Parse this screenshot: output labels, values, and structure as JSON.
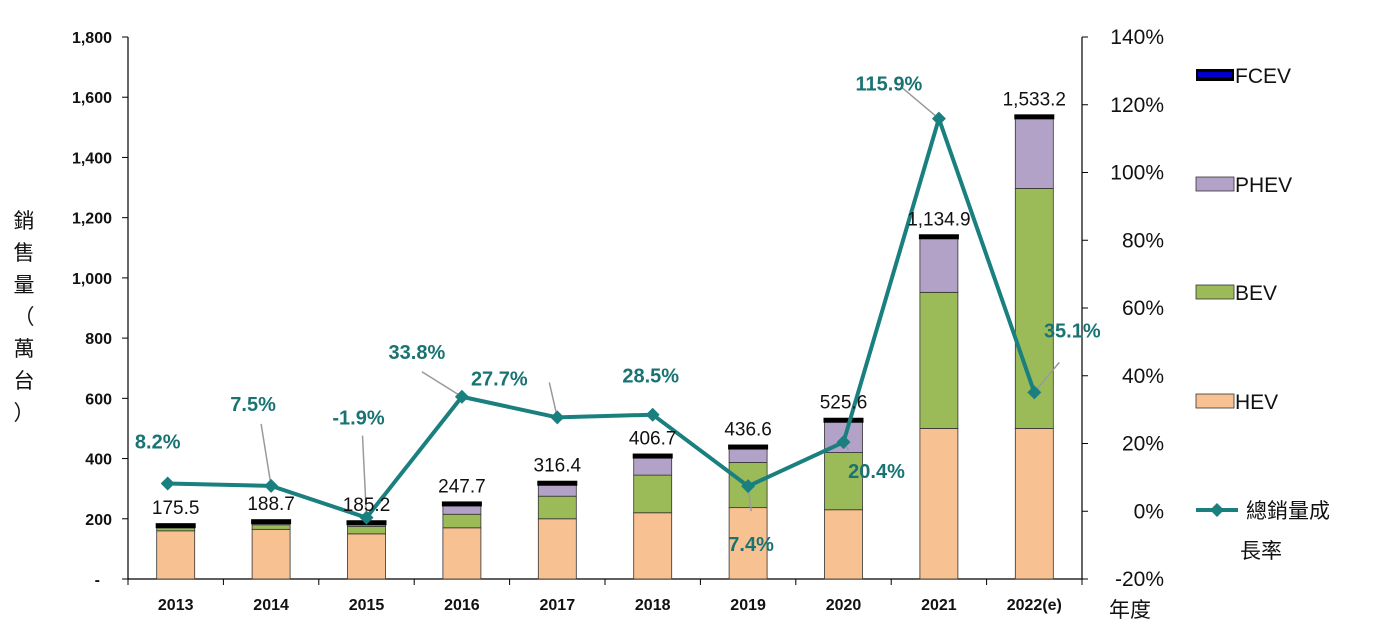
{
  "chart_data": {
    "type": "bar",
    "stacked": true,
    "categories": [
      "2013",
      "2014",
      "2015",
      "2016",
      "2017",
      "2018",
      "2019",
      "2020",
      "2021",
      "2022(e)"
    ],
    "series": [
      {
        "name": "HEV",
        "color": "#f8c191",
        "values": [
          160,
          165,
          150,
          170,
          200,
          220,
          237,
          230,
          500,
          500
        ]
      },
      {
        "name": "BEV",
        "color": "#9bbb59",
        "values": [
          10,
          15,
          25,
          45,
          75,
          125,
          150,
          190,
          452,
          797
        ]
      },
      {
        "name": "PHEV",
        "color": "#b3a2c7",
        "values": [
          5.5,
          8.7,
          10.2,
          32.7,
          41.4,
          61.7,
          49.6,
          105.6,
          182.9,
          236.2
        ]
      },
      {
        "name": "FCEV",
        "color": "#0000cc",
        "values": [
          0,
          0,
          0,
          0,
          0,
          0,
          0,
          0,
          0,
          0
        ]
      }
    ],
    "totals": [
      175.5,
      188.7,
      185.2,
      247.7,
      316.4,
      406.7,
      436.6,
      525.6,
      1134.9,
      1533.2
    ],
    "total_labels": [
      "175.5",
      "188.7",
      "185.2",
      "247.7",
      "316.4",
      "406.7",
      "436.6",
      "525.6",
      "1,134.9",
      "1,533.2"
    ],
    "line_series": {
      "name": "總銷量成長率",
      "color": "#1a7f7f",
      "values": [
        8.2,
        7.5,
        -1.9,
        33.8,
        27.7,
        28.5,
        7.4,
        20.4,
        115.9,
        35.1
      ],
      "labels": [
        "8.2%",
        "7.5%",
        "-1.9%",
        "33.8%",
        "27.7%",
        "28.5%",
        "7.4%",
        "20.4%",
        "115.9%",
        "35.1%"
      ]
    },
    "y_left": {
      "label": "銷售量（萬台）",
      "ylim": [
        0,
        1800
      ],
      "ticks": [
        0,
        200,
        400,
        600,
        800,
        1000,
        1200,
        1400,
        1600,
        1800
      ],
      "tick_labels": [
        "-",
        "200",
        "400",
        "600",
        "800",
        "1,000",
        "1,200",
        "1,400",
        "1,600",
        "1,800"
      ]
    },
    "y_right": {
      "ylim": [
        -20,
        140
      ],
      "ticks": [
        -20,
        0,
        20,
        40,
        60,
        80,
        100,
        120,
        140
      ],
      "tick_labels": [
        "-20%",
        "0%",
        "20%",
        "40%",
        "60%",
        "80%",
        "100%",
        "120%",
        "140%"
      ]
    },
    "xlabel": "年度",
    "legend": {
      "placement": "right",
      "items": [
        "FCEV",
        "PHEV",
        "BEV",
        "HEV"
      ],
      "line_label": "總銷量成長率"
    }
  }
}
